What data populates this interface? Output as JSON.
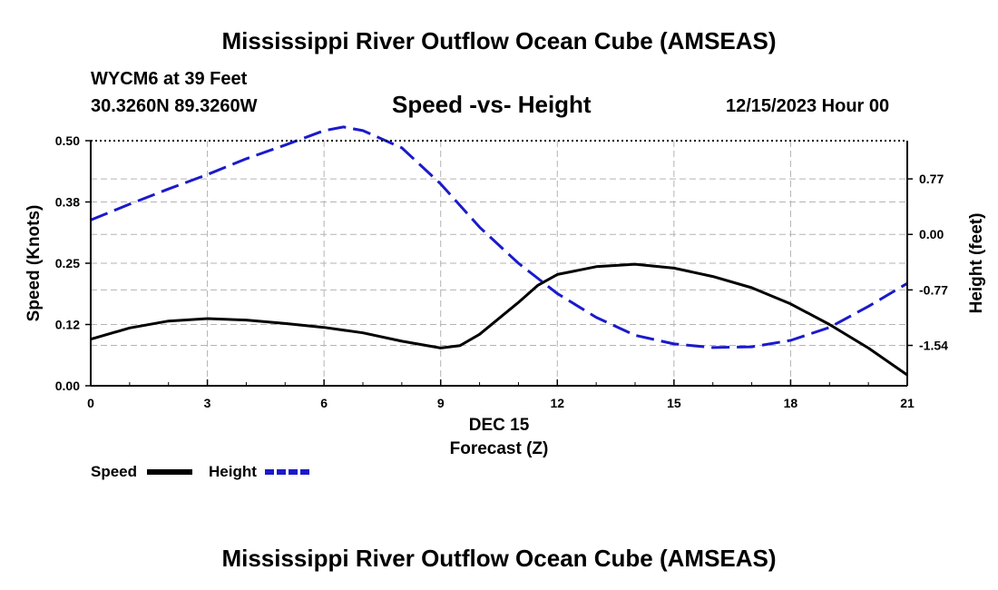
{
  "header": {
    "title": "Mississippi River Outflow Ocean Cube (AMSEAS)",
    "station": "WYCM6 at 39 Feet",
    "coordinates": "30.3260N  89.3260W",
    "date": "12/15/2023 Hour 00"
  },
  "footer": {
    "title": "Mississippi River Outflow Ocean Cube (AMSEAS)"
  },
  "chart_data": {
    "type": "line",
    "title": "Speed -vs- Height",
    "xlabel": "Forecast (Z)",
    "xlabel_date": "DEC 15",
    "ylabel": "Speed (Knots)",
    "y2label": "Height (feet)",
    "xlim": [
      0,
      21
    ],
    "ylim": [
      0,
      0.5
    ],
    "y2lim": [
      -2.1,
      1.3
    ],
    "x_ticks": [
      "0",
      "3",
      "6",
      "9",
      "12",
      "15",
      "18",
      "21"
    ],
    "x_tick_values": [
      0,
      3,
      6,
      9,
      12,
      15,
      18,
      21
    ],
    "y_ticks": [
      "0.00",
      "0.12",
      "0.25",
      "0.38",
      "0.50"
    ],
    "y_tick_values": [
      0,
      0.125,
      0.25,
      0.375,
      0.5
    ],
    "y2_ticks": [
      "-1.54",
      "-0.77",
      "0.00",
      "0.77"
    ],
    "y2_tick_values": [
      -1.54,
      -0.77,
      0.0,
      0.77
    ],
    "grid": true,
    "series": [
      {
        "name": "Speed",
        "axis": "left",
        "color": "#000000",
        "dash": "solid",
        "x": [
          0,
          1,
          2,
          3,
          4,
          5,
          6,
          7,
          8,
          9,
          9.5,
          10,
          11,
          11.5,
          12,
          13,
          14,
          15,
          16,
          17,
          18,
          19,
          20,
          21
        ],
        "y": [
          0.095,
          0.118,
          0.132,
          0.137,
          0.134,
          0.127,
          0.119,
          0.108,
          0.091,
          0.077,
          0.082,
          0.105,
          0.17,
          0.205,
          0.227,
          0.243,
          0.248,
          0.24,
          0.223,
          0.2,
          0.167,
          0.125,
          0.077,
          0.022
        ]
      },
      {
        "name": "Height",
        "axis": "right",
        "color": "#1a1acc",
        "dash": "dashed",
        "x": [
          0,
          1,
          2,
          3,
          4,
          5,
          6,
          6.5,
          7,
          8,
          9,
          10,
          11,
          12,
          13,
          14,
          15,
          16,
          17,
          18,
          19,
          20,
          21
        ],
        "y": [
          0.2,
          0.42,
          0.63,
          0.83,
          1.05,
          1.24,
          1.44,
          1.49,
          1.44,
          1.2,
          0.7,
          0.1,
          -0.4,
          -0.82,
          -1.15,
          -1.4,
          -1.52,
          -1.57,
          -1.56,
          -1.47,
          -1.29,
          -1.0,
          -0.68
        ]
      }
    ],
    "legend": [
      "Speed",
      "Height"
    ],
    "legend_position": "bottom-left"
  }
}
